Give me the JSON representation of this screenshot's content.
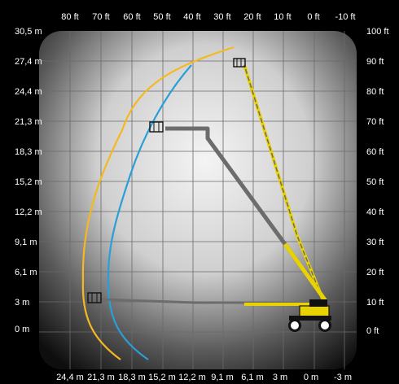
{
  "diagram": {
    "top_ft_labels": [
      "80 ft",
      "70 ft",
      "60 ft",
      "50 ft",
      "40 ft",
      "30 ft",
      "20 ft",
      "10 ft",
      "0 ft",
      "-10 ft"
    ],
    "bottom_m_labels": [
      "24,4 m",
      "21,3 m",
      "18,3 m",
      "15,2 m",
      "12,2 m",
      "9,1 m",
      "6,1 m",
      "3 m",
      "0 m",
      "-3 m"
    ],
    "left_m_labels": [
      "30,5 m",
      "27,4 m",
      "24,4 m",
      "21,3 m",
      "18,3 m",
      "15,2 m",
      "12,2 m",
      "9,1 m",
      "6,1 m",
      "3 m",
      "0 m"
    ],
    "right_ft_labels": [
      "100 ft",
      "90 ft",
      "80 ft",
      "70 ft",
      "60 ft",
      "50 ft",
      "40 ft",
      "30 ft",
      "20 ft",
      "10 ft",
      "0 ft"
    ],
    "colors": {
      "background": "#000000",
      "chart_fill_center": "#f4f4f4",
      "chart_fill_edge": "#0e0e0e",
      "grid": "#6a6a6a",
      "envelope_outer": "#f5b820",
      "envelope_inner": "#2a9fd6",
      "machine_yellow": "#e8d200",
      "machine_gray": "#6c6c6c",
      "machine_dark": "#111111"
    },
    "icons": [
      "aerial-lift-machine-icon",
      "platform-basket-icon"
    ]
  }
}
